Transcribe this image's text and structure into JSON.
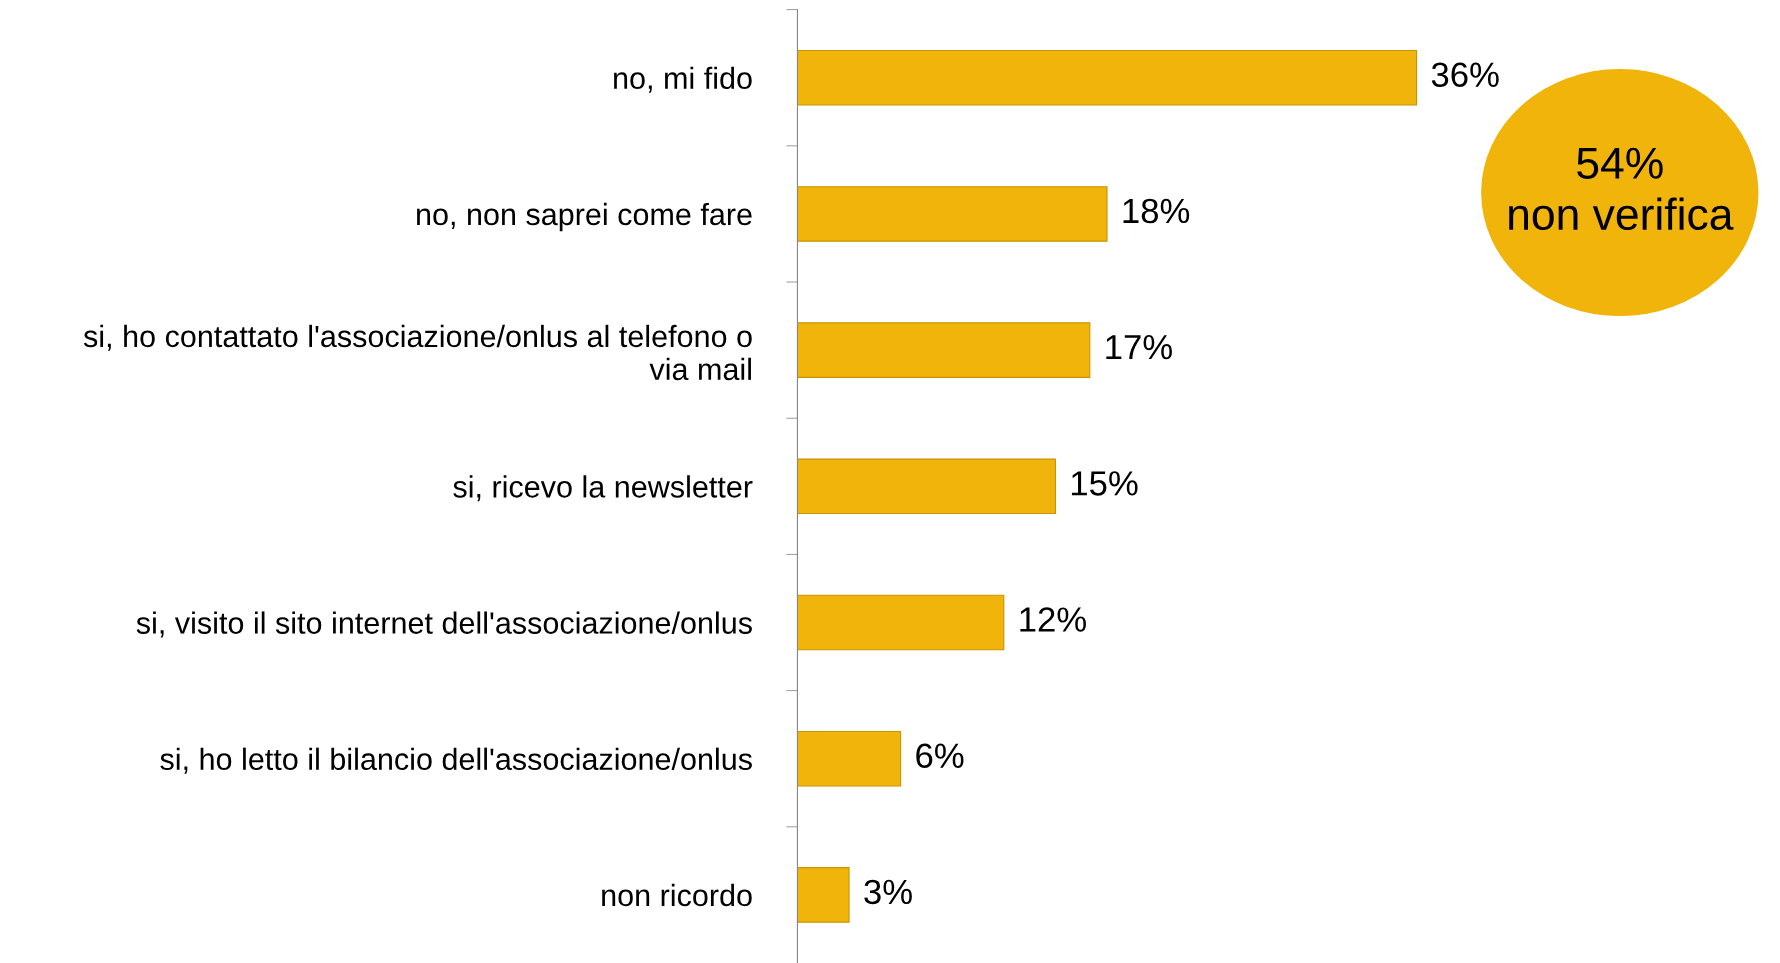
{
  "chart_data": {
    "type": "bar",
    "orientation": "horizontal",
    "categories": [
      "no, mi fido",
      "no, non saprei come fare",
      "si, ho contattato l'associazione/onlus al telefono o via mail",
      "si, ricevo la newsletter",
      "si, visito il sito internet dell'associazione/onlus",
      "si, ho letto il bilancio dell'associazione/onlus",
      "non ricordo"
    ],
    "values": [
      36,
      18,
      17,
      15,
      12,
      6,
      3
    ],
    "value_labels": [
      "36%",
      "18%",
      "17%",
      "15%",
      "12%",
      "6%",
      "3%"
    ],
    "color": "#f0b40a",
    "tick_labels": "y",
    "grid": false,
    "annotations": [
      "54%\nnon verifica"
    ]
  }
}
